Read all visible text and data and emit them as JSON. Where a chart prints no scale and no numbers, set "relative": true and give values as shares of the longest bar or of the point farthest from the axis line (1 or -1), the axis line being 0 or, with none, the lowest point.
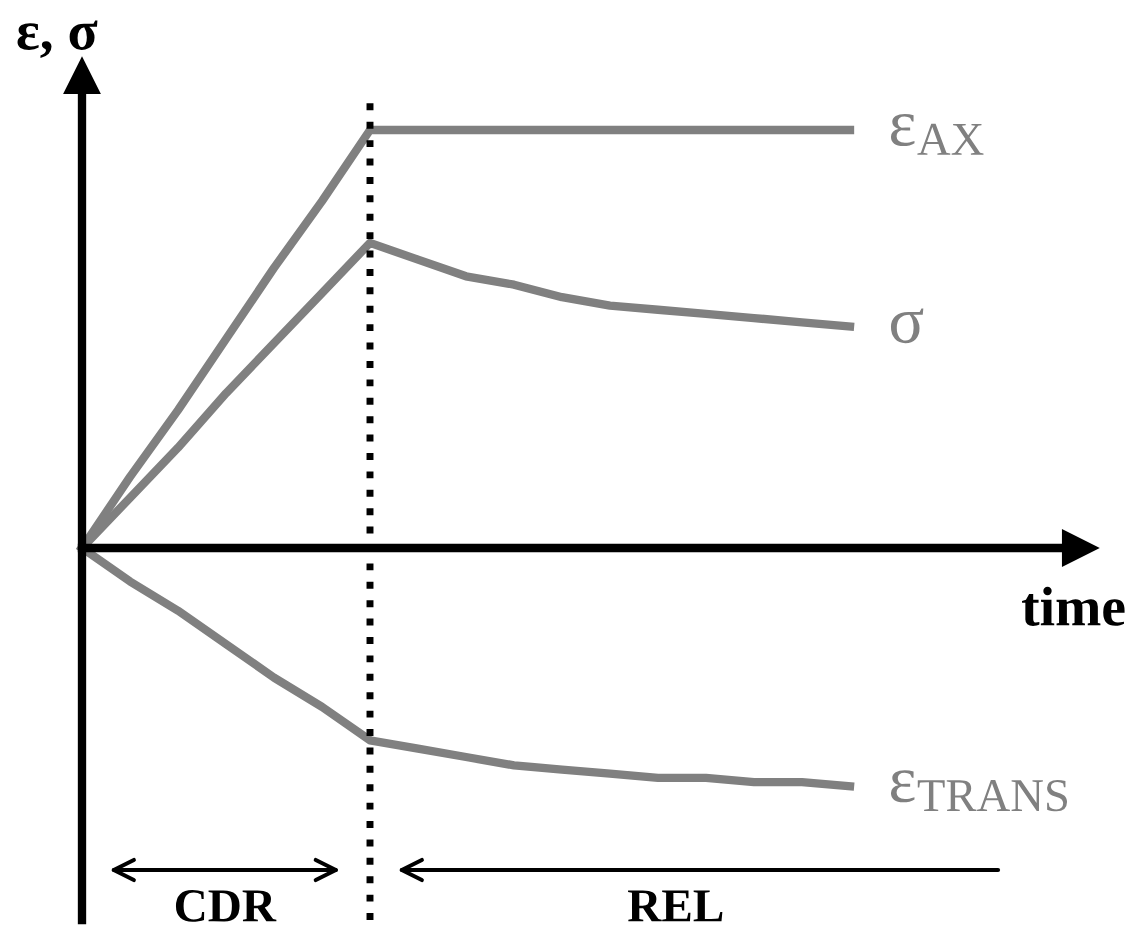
{
  "chart_data": {
    "type": "line",
    "relative": true,
    "ylabel": "ε, σ",
    "xlabel": "time",
    "categories": [
      null,
      null,
      null,
      null,
      null,
      null,
      null,
      null,
      null,
      null,
      null,
      null,
      null,
      null,
      null,
      null,
      null
    ],
    "series": [
      {
        "name": "ε$_{AX}$",
        "color": "#808080",
        "values": [
          0,
          0.17,
          0.33,
          0.5,
          0.67,
          0.83,
          1,
          1,
          1,
          1,
          1,
          1,
          1,
          1,
          1,
          1,
          1
        ]
      },
      {
        "name": "σ",
        "color": "#808080",
        "values": [
          0,
          0.12,
          0.24,
          0.37,
          0.49,
          0.61,
          0.73,
          0.69,
          0.65,
          0.63,
          0.6,
          0.58,
          0.57,
          0.56,
          0.55,
          0.54,
          0.53
        ]
      },
      {
        "name": "ε$_{TRANS}$",
        "color": "#808080",
        "values": [
          0,
          -0.08,
          -0.15,
          -0.23,
          -0.31,
          -0.38,
          -0.46,
          -0.48,
          -0.5,
          -0.52,
          -0.53,
          -0.54,
          -0.55,
          -0.55,
          -0.56,
          -0.56,
          -0.57
        ]
      }
    ],
    "annotations": [
      "CDR",
      "REL"
    ],
    "legend": false,
    "line_style": "solid",
    "marker": "none"
  }
}
